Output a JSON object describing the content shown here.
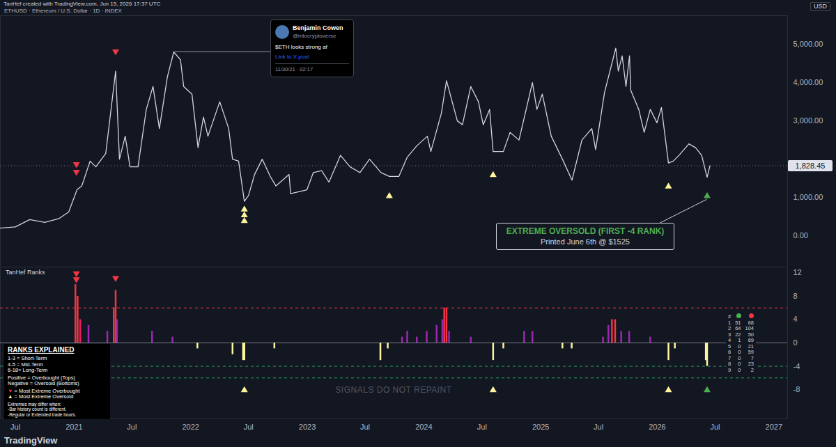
{
  "header": {
    "credit": "TanHef created with TradingView.com, Jun 15, 2026 17:37 UTC",
    "currency": "USD"
  },
  "footer": "TradingView",
  "chart_data": [
    {
      "type": "line",
      "title": "ETHUSD · Ethereum / U.S. Dollar · 1D · INDEX",
      "color": "#d1d4dc",
      "x": [
        "2020-05-15",
        "2020-07-01",
        "2020-08-15",
        "2020-10-01",
        "2020-11-15",
        "2020-12-15",
        "2021-01-10",
        "2021-01-25",
        "2021-02-20",
        "2021-03-10",
        "2021-04-10",
        "2021-05-11",
        "2021-05-23",
        "2021-06-10",
        "2021-06-25",
        "2021-07-20",
        "2021-08-15",
        "2021-09-05",
        "2021-09-25",
        "2021-10-20",
        "2021-11-09",
        "2021-11-30",
        "2021-12-10",
        "2022-01-05",
        "2022-01-24",
        "2022-02-10",
        "2022-02-24",
        "2022-04-02",
        "2022-04-30",
        "2022-05-12",
        "2022-05-31",
        "2022-06-18",
        "2022-07-01",
        "2022-07-20",
        "2022-08-13",
        "2022-09-07",
        "2022-09-25",
        "2022-11-05",
        "2022-11-10",
        "2022-12-31",
        "2023-01-20",
        "2023-02-15",
        "2023-03-10",
        "2023-04-15",
        "2023-05-15",
        "2023-06-15",
        "2023-07-15",
        "2023-08-20",
        "2023-09-15",
        "2023-10-15",
        "2023-11-10",
        "2023-12-10",
        "2024-01-12",
        "2024-01-23",
        "2024-02-25",
        "2024-03-12",
        "2024-04-15",
        "2024-05-01",
        "2024-05-27",
        "2024-06-20",
        "2024-07-05",
        "2024-07-25",
        "2024-08-05",
        "2024-09-06",
        "2024-09-27",
        "2024-10-25",
        "2024-12-06",
        "2024-12-20",
        "2025-01-06",
        "2025-02-03",
        "2025-03-10",
        "2025-04-09",
        "2025-05-10",
        "2025-06-10",
        "2025-06-22",
        "2025-07-20",
        "2025-08-24",
        "2025-09-01",
        "2025-09-13",
        "2025-09-25",
        "2025-10-06",
        "2025-10-10",
        "2025-11-04",
        "2025-11-21",
        "2025-12-10",
        "2025-12-31",
        "2026-01-14",
        "2026-02-05",
        "2026-02-20",
        "2026-03-10",
        "2026-04-10",
        "2026-05-01",
        "2026-05-20",
        "2026-06-06",
        "2026-06-15"
      ],
      "values": [
        200,
        230,
        420,
        350,
        450,
        620,
        1200,
        1300,
        1950,
        1800,
        2150,
        4300,
        2000,
        2600,
        1800,
        1800,
        3300,
        3900,
        2800,
        4150,
        4800,
        4600,
        3900,
        3700,
        2300,
        3100,
        2600,
        3500,
        2800,
        2000,
        1950,
        900,
        1050,
        1600,
        2000,
        1550,
        1300,
        1600,
        1100,
        1200,
        1650,
        1700,
        1400,
        2100,
        1800,
        1650,
        2000,
        1650,
        1550,
        1550,
        2050,
        2350,
        2600,
        2200,
        3200,
        4050,
        3000,
        2900,
        3900,
        3500,
        2900,
        3300,
        2200,
        2200,
        2700,
        2500,
        4000,
        3300,
        3700,
        2600,
        2000,
        1450,
        2500,
        2800,
        2250,
        3750,
        4900,
        4300,
        4700,
        3900,
        4700,
        3800,
        3300,
        2700,
        3300,
        2950,
        3350,
        1900,
        1950,
        2100,
        2400,
        2300,
        2100,
        1525,
        1828.45
      ],
      "xlim": [
        "2020-05-15",
        "2027-02-13"
      ],
      "ylim": [
        -800,
        5750
      ],
      "yticks": [
        {
          "value": 0,
          "label": "0.00"
        },
        {
          "value": 1000,
          "label": "1,000.00"
        },
        {
          "value": 3000,
          "label": "3,000.00"
        },
        {
          "value": 4000,
          "label": "4,000.00"
        },
        {
          "value": 5000,
          "label": "5,000.00"
        }
      ],
      "tick_labels": "y",
      "grid": false,
      "last_price": {
        "value": 1828.45,
        "label": "1,828.45"
      },
      "markers": [
        {
          "x": "2021-01-08",
          "y": 1850,
          "marker": "triangle-down",
          "color": "#f23645"
        },
        {
          "x": "2021-01-08",
          "y": 1650,
          "marker": "triangle-down",
          "color": "#f23645"
        },
        {
          "x": "2021-05-11",
          "y": 4800,
          "marker": "triangle-down",
          "color": "#f23645"
        },
        {
          "x": "2022-06-18",
          "y": 700,
          "marker": "triangle-up",
          "color": "#fff59d"
        },
        {
          "x": "2022-06-18",
          "y": 550,
          "marker": "triangle-up",
          "color": "#fff59d"
        },
        {
          "x": "2022-06-18",
          "y": 400,
          "marker": "triangle-up",
          "color": "#fff59d"
        },
        {
          "x": "2023-09-15",
          "y": 1050,
          "marker": "triangle-up",
          "color": "#fff59d"
        },
        {
          "x": "2024-08-05",
          "y": 1600,
          "marker": "triangle-up",
          "color": "#fff59d"
        },
        {
          "x": "2026-02-05",
          "y": 1300,
          "marker": "triangle-up",
          "color": "#fff59d"
        },
        {
          "x": "2026-06-06",
          "y": 1050,
          "marker": "triangle-up",
          "color": "#4caf50"
        }
      ],
      "tweet_card": {
        "author": "Benjamin Cowen",
        "handle": "@intocryptoverse",
        "text": "$ETH looks strong af",
        "link": "Link to X post",
        "timestamp": "11/30/21 · 02:17",
        "x": "2021-11-09",
        "y": 4800
      },
      "callout": {
        "title": "EXTREME OVERSOLD (FIRST -4 RANK)",
        "text": "Printed June 6th @ $1525",
        "color": "#4caf50",
        "x": "2026-06-06",
        "y": 1050
      }
    },
    {
      "type": "bar",
      "title": "TanHef Ranks",
      "x": [
        "2021-01-05",
        "2021-01-12",
        "2021-01-20",
        "2021-02-15",
        "2021-04-15",
        "2021-05-05",
        "2021-05-11",
        "2021-05-15",
        "2021-09-02",
        "2021-11-05",
        "2022-01-22",
        "2022-05-12",
        "2022-06-14",
        "2022-06-18",
        "2022-09-20",
        "2023-08-18",
        "2023-09-10",
        "2023-10-25",
        "2023-11-10",
        "2023-12-10",
        "2024-01-10",
        "2024-02-10",
        "2024-02-28",
        "2024-03-05",
        "2024-03-12",
        "2024-03-20",
        "2024-05-27",
        "2024-08-05",
        "2024-09-06",
        "2024-11-10",
        "2024-12-06",
        "2025-03-10",
        "2025-04-08",
        "2025-07-15",
        "2025-08-01",
        "2025-08-12",
        "2025-08-22",
        "2025-09-10",
        "2025-10-05",
        "2025-12-10",
        "2026-02-05",
        "2026-02-25",
        "2026-06-02",
        "2026-06-06"
      ],
      "values": [
        10,
        8,
        4,
        3,
        2,
        6,
        9,
        4,
        2,
        1,
        -1,
        -2,
        -3,
        -3,
        -1,
        -3,
        -1,
        1,
        2,
        1,
        2,
        3,
        4,
        6,
        6,
        2,
        1,
        -3,
        -1,
        2,
        2,
        -1,
        -1,
        1,
        3,
        4,
        4,
        2,
        2,
        1,
        -3,
        -1,
        -3,
        -4
      ],
      "colors": [
        "#f23645",
        "#f23645",
        "#e91e63",
        "#9c27b0",
        "#9c27b0",
        "#f23645",
        "#f23645",
        "#9c27b0",
        "#9c27b0",
        "#9c27b0",
        "#fff59d",
        "#fff59d",
        "#fff59d",
        "#fff59d",
        "#fff59d",
        "#fff59d",
        "#fff59d",
        "#9c27b0",
        "#9c27b0",
        "#9c27b0",
        "#9c27b0",
        "#9c27b0",
        "#9c27b0",
        "#f23645",
        "#f23645",
        "#9c27b0",
        "#9c27b0",
        "#fff59d",
        "#fff59d",
        "#9c27b0",
        "#9c27b0",
        "#fff59d",
        "#fff59d",
        "#9c27b0",
        "#9c27b0",
        "#f23645",
        "#f23645",
        "#9c27b0",
        "#9c27b0",
        "#9c27b0",
        "#fff59d",
        "#fff59d",
        "#fff59d",
        "#fff59d"
      ],
      "xlim": [
        "2020-05-15",
        "2027-02-13"
      ],
      "xticks": [
        {
          "value": "2020-07-01",
          "label": "Jul"
        },
        {
          "value": "2021-01-01",
          "label": "2021"
        },
        {
          "value": "2021-07-01",
          "label": "Jul"
        },
        {
          "value": "2022-01-01",
          "label": "2022"
        },
        {
          "value": "2022-07-01",
          "label": "Jul"
        },
        {
          "value": "2023-01-01",
          "label": "2023"
        },
        {
          "value": "2023-07-01",
          "label": "Jul"
        },
        {
          "value": "2024-01-01",
          "label": "2024"
        },
        {
          "value": "2024-07-01",
          "label": "Jul"
        },
        {
          "value": "2025-01-01",
          "label": "2025"
        },
        {
          "value": "2025-07-01",
          "label": "Jul"
        },
        {
          "value": "2026-01-01",
          "label": "2026"
        },
        {
          "value": "2026-07-01",
          "label": "Jul"
        },
        {
          "value": "2027-01-01",
          "label": "2027"
        }
      ],
      "ylim": [
        -13,
        13
      ],
      "yticks": [
        12,
        8,
        4,
        0,
        -4,
        -8
      ],
      "grid": false,
      "reference_lines": [
        {
          "value": 0,
          "color": "#787b86",
          "line_style": "solid"
        },
        {
          "value": 6,
          "color": "#f23645",
          "line_style": "dashed"
        },
        {
          "value": -4,
          "color": "#26a65b",
          "line_style": "dashed"
        },
        {
          "value": -6,
          "color": "#26a65b",
          "line_style": "dashed"
        }
      ],
      "markers": [
        {
          "x": "2021-01-08",
          "y": 11.8,
          "marker": "triangle-down",
          "color": "#f23645"
        },
        {
          "x": "2021-01-08",
          "y": 10.8,
          "marker": "triangle-down",
          "color": "#f23645"
        },
        {
          "x": "2021-05-11",
          "y": 11,
          "marker": "triangle-down",
          "color": "#f23645"
        },
        {
          "x": "2022-06-18",
          "y": -8,
          "marker": "triangle-up",
          "color": "#fff59d"
        },
        {
          "x": "2024-08-05",
          "y": -8,
          "marker": "triangle-up",
          "color": "#fff59d"
        },
        {
          "x": "2026-02-05",
          "y": -8,
          "marker": "triangle-up",
          "color": "#fff59d"
        },
        {
          "x": "2026-06-06",
          "y": -8,
          "marker": "triangle-up",
          "color": "#4caf50"
        }
      ],
      "watermark": "SIGNALS DO NOT REPAINT",
      "legend_box": {
        "title": "RANKS EXPLAINED",
        "groups": [
          [
            "1-3  = Short-Term",
            "4-5  = Mid-Term",
            "6-18= Long-Term"
          ],
          [
            "Positive = Overbought (Tops)",
            "Negative = Oversold (Bottoms)"
          ],
          [
            "▼ = Most Extreme Overbought",
            "▲ = Most Extreme Oversold"
          ],
          [
            "Extremes may differ when:",
            "-Bar history count is different.",
            "-Regular or Extended trade hours."
          ]
        ]
      },
      "table": {
        "header": "#",
        "column_colors": [
          "#4caf50",
          "#f23645"
        ],
        "rows": [
          [
            1,
            51,
            68
          ],
          [
            2,
            64,
            104
          ],
          [
            3,
            22,
            50
          ],
          [
            4,
            1,
            69
          ],
          [
            5,
            0,
            21
          ],
          [
            6,
            0,
            59
          ],
          [
            7,
            0,
            7
          ],
          [
            8,
            0,
            23
          ],
          [
            9,
            0,
            2
          ]
        ]
      }
    }
  ]
}
